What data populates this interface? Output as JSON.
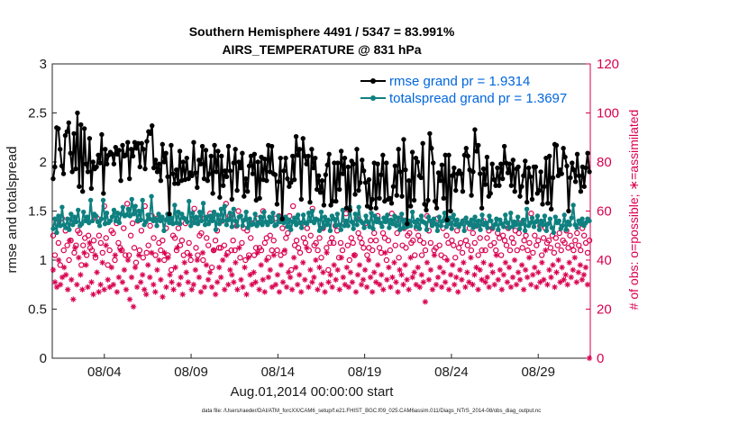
{
  "chart_data": {
    "type": "line",
    "title": "Southern Hemisphere 4491 / 5347 = 83.991%",
    "subtitle": "AIRS_TEMPERATURE @ 831 hPa",
    "xlabel": "Aug.01,2014 00:00:00 start",
    "ylabel": "rmse and totalspread",
    "y2label": "# of obs: o=possible; ∗=assimilated",
    "footer": "data file: /Users/raeder/DAI/ATM_forcXX/CAM6_setup/f.e21.FHIST_BGC.f09_025.CAM6assim.011/Diags_NTrS_2014-08/obs_diag_output.nc",
    "x_ticks": [
      "08/04",
      "08/09",
      "08/14",
      "08/19",
      "08/24",
      "08/29"
    ],
    "x_tick_days": [
      4,
      9,
      14,
      19,
      24,
      29
    ],
    "xlim": [
      1,
      32
    ],
    "ylim": [
      0,
      3
    ],
    "y_ticks": [
      "0",
      "0.5",
      "1",
      "1.5",
      "2",
      "2.5",
      "3"
    ],
    "y2lim": [
      0,
      120
    ],
    "y2_ticks": [
      "0",
      "20",
      "40",
      "60",
      "80",
      "100",
      "120"
    ],
    "grid": false,
    "legend_position": "top-right",
    "colors": {
      "rmse": "#000000",
      "totalspread": "#0f8080",
      "obs": "#d9004f",
      "legend_text": "#0066dd"
    },
    "series": [
      {
        "name": "rmse grand pr = 1.9314",
        "axis": "left",
        "values": [
          1.83,
          1.95,
          2.35,
          2.34,
          2.13,
          1.96,
          1.88,
          2.27,
          2.31,
          2.4,
          2.09,
          1.9,
          2.29,
          1.93,
          2.5,
          1.75,
          2.38,
          1.7,
          2.34,
          1.98,
          1.9,
          2.24,
          1.73,
          2.0,
          1.93,
          1.95,
          2.07,
          1.99,
          2.28,
          1.68,
          2.13,
          1.98,
          2.07,
          2.1,
          2.08,
          1.98,
          2.15,
          2.08,
          2.12,
          1.81,
          2.17,
          2.06,
          2.07,
          2.2,
          1.83,
          2.13,
          2.06,
          2.2,
          2.14,
          2.19,
          1.95,
          2.19,
          2.13,
          1.93,
          2.21,
          2.31,
          2.29,
          2.37,
          1.94,
          2.02,
          1.9,
          1.98,
          1.81,
          2.18,
          2.0,
          2.09,
          1.85,
          1.47,
          2.17,
          1.88,
          1.78,
          1.92,
          1.78,
          2.11,
          1.81,
          2.0,
          1.82,
          2.04,
          1.83,
          1.89,
          1.86,
          2.2,
          1.89,
          1.74,
          2.02,
          1.98,
          2.16,
          1.83,
          2.12,
          1.81,
          1.88,
          2.06,
          1.68,
          2.17,
          1.9,
          2.11,
          1.64,
          2.06,
          1.76,
          1.91,
          1.85,
          2.16,
          1.91,
          1.62,
          1.99,
          2.13,
          1.71,
          2.0,
          1.94,
          2.09,
          1.65,
          1.83,
          1.7,
          1.96,
          2.06,
          1.88,
          2.08,
          1.61,
          2.0,
          1.63,
          2.05,
          1.82,
          2.03,
          1.81,
          2.17,
          1.9,
          2.16,
          1.88,
          1.87,
          1.57,
          1.8,
          2.04,
          1.42,
          1.91,
          2.04,
          1.83,
          1.75,
          1.79,
          2.06,
          1.82,
          2.26,
          2.07,
          2.13,
          1.62,
          2.24,
          2.06,
          1.98,
          2.06,
          1.59,
          2.13,
          1.94,
          2.04,
          1.72,
          1.86,
          1.69,
          1.81,
          1.56,
          1.87,
          1.97,
          2.08,
          1.56,
          1.6,
          1.99,
          1.6,
          1.99,
          1.72,
          2.11,
          1.88,
          2.04,
          1.53,
          1.95,
          1.51,
          2.01,
          1.98,
          1.67,
          2.13,
          1.71,
          1.79,
          2.02,
          1.91,
          1.79,
          1.55,
          1.82,
          1.53,
          1.62,
          1.99,
          1.53,
          1.98,
          1.63,
          1.87,
          2.07,
          1.6,
          1.99,
          1.62,
          1.63,
          1.58,
          1.75,
          1.96,
          1.66,
          2.13,
          1.9,
          1.65,
          2.23,
          1.92,
          1.37,
          1.81,
          1.55,
          2.1,
          1.61,
          2.04,
          2.0,
          1.86,
          1.84,
          2.19,
          1.57,
          1.51,
          1.61,
          2.29,
          2.14,
          1.99,
          1.6,
          1.53,
          1.89,
          1.81,
          1.97,
          1.63,
          2.07,
          1.41,
          2.07,
          1.5,
          1.86,
          1.94,
          1.71,
          1.88,
          1.91,
          1.88,
          1.7,
          2.07,
          2.14,
          2.06,
          1.92,
          1.66,
          1.9,
          2.33,
          2.11,
          2.17,
          1.88,
          1.53,
          1.93,
          1.77,
          2.05,
          1.65,
          1.68,
          1.98,
          1.82,
          1.76,
          1.94,
          1.76,
          1.98,
          1.83,
          2.16,
          1.99,
          1.89,
          1.98,
          1.76,
          2.02,
          1.7,
          1.93,
          1.95,
          1.65,
          1.75,
          1.86,
          2.01,
          1.59,
          1.94,
          1.85,
          1.62,
          1.95,
          1.95,
          1.68,
          1.71,
          1.9,
          1.57,
          1.75,
          2.04,
          1.58,
          2.06,
          1.52,
          1.84,
          2.18,
          2.17,
          1.86,
          1.92,
          1.88,
          2.14,
          2.05,
          1.96,
          1.5,
          1.84,
          1.99,
          1.92,
          1.8,
          2.08,
          1.86,
          1.7,
          1.95,
          1.75,
          1.94,
          2.09,
          1.9
        ]
      },
      {
        "name": "totalspread grand pr = 1.3697",
        "axis": "left",
        "values": [
          1.32,
          1.42,
          1.28,
          1.45,
          1.35,
          1.54,
          1.36,
          1.33,
          1.42,
          1.31,
          1.47,
          1.36,
          1.44,
          1.39,
          1.51,
          1.35,
          1.37,
          1.49,
          1.4,
          1.44,
          1.38,
          1.61,
          1.4,
          1.47,
          1.45,
          1.39,
          1.35,
          1.42,
          1.61,
          1.37,
          1.48,
          1.38,
          1.4,
          1.44,
          1.51,
          1.4,
          1.48,
          1.38,
          1.47,
          1.54,
          1.45,
          1.46,
          1.52,
          1.45,
          1.62,
          1.47,
          1.55,
          1.4,
          1.5,
          1.41,
          1.61,
          1.36,
          1.39,
          1.46,
          1.42,
          1.65,
          1.4,
          1.42,
          1.35,
          1.47,
          1.4,
          1.44,
          1.3,
          1.41,
          1.47,
          1.38,
          1.43,
          1.37,
          1.56,
          1.38,
          1.49,
          1.37,
          1.47,
          1.43,
          1.42,
          1.39,
          1.6,
          1.35,
          1.48,
          1.38,
          1.44,
          1.37,
          1.49,
          1.4,
          1.58,
          1.36,
          1.44,
          1.37,
          1.45,
          1.4,
          1.49,
          1.31,
          1.46,
          1.37,
          1.52,
          1.4,
          1.55,
          1.36,
          1.41,
          1.48,
          1.34,
          1.52,
          1.4,
          1.35,
          1.44,
          1.45,
          1.35,
          1.41,
          1.49,
          1.33,
          1.42,
          1.36,
          1.37,
          1.47,
          1.35,
          1.38,
          1.44,
          1.36,
          1.49,
          1.39,
          1.36,
          1.44,
          1.39,
          1.48,
          1.35,
          1.36,
          1.45,
          1.39,
          1.4,
          1.38,
          1.44,
          1.34,
          1.41,
          1.31,
          1.39,
          1.43,
          1.36,
          1.46,
          1.38,
          1.33,
          1.46,
          1.38,
          1.37,
          1.48,
          1.4,
          1.5,
          1.38,
          1.42,
          1.41,
          1.3,
          1.49,
          1.33,
          1.44,
          1.36,
          1.41,
          1.3,
          1.45,
          1.42,
          1.35,
          1.47,
          1.36,
          1.31,
          1.51,
          1.35,
          1.4,
          1.35,
          1.54,
          1.39,
          1.32,
          1.47,
          1.36,
          1.54,
          1.4,
          1.38,
          1.33,
          1.45,
          1.39,
          1.34,
          1.48,
          1.32,
          1.45,
          1.39,
          1.42,
          1.38,
          1.34,
          1.43,
          1.39,
          1.46,
          1.33,
          1.41,
          1.37,
          1.45,
          1.35,
          1.43,
          1.31,
          1.47,
          1.33,
          1.41,
          1.34,
          1.4,
          1.35,
          1.49,
          1.39,
          1.34,
          1.41,
          1.32,
          1.45,
          1.39,
          1.38,
          1.31,
          1.44,
          1.4,
          1.35,
          1.42,
          1.37,
          1.3,
          1.44,
          1.35,
          1.4,
          1.48,
          1.34,
          1.37,
          1.43,
          1.32,
          1.46,
          1.36,
          1.41,
          1.34,
          1.37,
          1.4,
          1.3,
          1.43,
          1.38,
          1.36,
          1.41,
          1.33,
          1.44,
          1.35,
          1.4,
          1.31,
          1.46,
          1.36,
          1.38,
          1.33,
          1.45,
          1.4,
          1.33,
          1.36,
          1.42,
          1.31,
          1.41,
          1.37,
          1.34,
          1.46,
          1.38,
          1.33,
          1.48,
          1.34,
          1.39,
          1.36,
          1.44,
          1.32,
          1.37,
          1.41,
          1.3,
          1.52,
          1.35,
          1.38,
          1.43,
          1.34,
          1.39,
          1.45,
          1.31,
          1.4,
          1.36,
          1.45,
          1.3,
          1.37,
          1.42,
          1.33,
          1.28,
          1.44,
          1.38,
          1.4,
          1.32,
          1.35,
          1.46,
          1.31,
          1.39,
          1.36,
          1.43,
          1.56,
          1.36,
          1.33,
          1.4,
          1.37,
          1.42,
          1.35,
          1.38,
          1.42,
          1.4
        ]
      },
      {
        "name": "obs possible",
        "axis": "right",
        "marker": "circle",
        "values": [
          50,
          42,
          55,
          47,
          38,
          57,
          44,
          52,
          46,
          40,
          48,
          55,
          43,
          46,
          52,
          51,
          38,
          46,
          49,
          42,
          50,
          45,
          44,
          48,
          41,
          57,
          50,
          47,
          43,
          62,
          49,
          38,
          44,
          52,
          51,
          40,
          55,
          47,
          45,
          44,
          53,
          42,
          63,
          42,
          50,
          55,
          45,
          39,
          56,
          44,
          52,
          41,
          62,
          43,
          46,
          54,
          58,
          49,
          42,
          57,
          47,
          44,
          48,
          40,
          53,
          42,
          56,
          36,
          50,
          49,
          44,
          53,
          46,
          48,
          42,
          55,
          43,
          47,
          40,
          57,
          61,
          45,
          42,
          50,
          51,
          40,
          57,
          49,
          46,
          59,
          37,
          44,
          48,
          52,
          45,
          45,
          56,
          46,
          63,
          43,
          58,
          44,
          48,
          44,
          54,
          60,
          41,
          47,
          53,
          40,
          52,
          42,
          49,
          55,
          42,
          45,
          57,
          45,
          44,
          60,
          47,
          49,
          41,
          50,
          44,
          48,
          57,
          44,
          58,
          42,
          53,
          43,
          49,
          51,
          58,
          36,
          62,
          46,
          48,
          45,
          43,
          55,
          49,
          47,
          53,
          44,
          50,
          61,
          46,
          47,
          44,
          49,
          41,
          53,
          55,
          45,
          36,
          47,
          49,
          47,
          54,
          52,
          41,
          47,
          44,
          55,
          59,
          46,
          40,
          49,
          47,
          42,
          57,
          51,
          49,
          47,
          45,
          55,
          42,
          45,
          48,
          44,
          51,
          48,
          58,
          45,
          43,
          51,
          49,
          40,
          48,
          44,
          59,
          55,
          46,
          51,
          41,
          57,
          46,
          53,
          45,
          50,
          51,
          47,
          48,
          42,
          53,
          50,
          48,
          42,
          47,
          44,
          58,
          52,
          47,
          55,
          44,
          45,
          57,
          46,
          42,
          53,
          41,
          50,
          47,
          55,
          48,
          46,
          41,
          52,
          45,
          47,
          43,
          56,
          48,
          46,
          53,
          44,
          51,
          47,
          54,
          42,
          49,
          44,
          56,
          44,
          49,
          52,
          46,
          53,
          47,
          44,
          51,
          49,
          42,
          50,
          48,
          46,
          53,
          44,
          49,
          47,
          52,
          44,
          51,
          55,
          45,
          48,
          50,
          44,
          47,
          59,
          43,
          50,
          46,
          48,
          54,
          42,
          49,
          53,
          47,
          48,
          45,
          50,
          43,
          49,
          46,
          51,
          44,
          48,
          47,
          52,
          45,
          50,
          46,
          44,
          48,
          51,
          46,
          44,
          53,
          50,
          47,
          43,
          48
        ]
      },
      {
        "name": "obs assimilated",
        "axis": "right",
        "marker": "asterisk",
        "values": [
          36,
          31,
          29,
          40,
          30,
          33,
          37,
          34,
          28,
          48,
          32,
          24,
          45,
          30,
          41,
          34,
          28,
          43,
          38,
          29,
          47,
          31,
          26,
          42,
          35,
          27,
          30,
          39,
          28,
          46,
          32,
          29,
          37,
          30,
          42,
          27,
          33,
          44,
          31,
          36,
          28,
          40,
          24,
          33,
          21,
          37,
          29,
          42,
          31,
          34,
          28,
          26,
          38,
          33,
          43,
          30,
          27,
          36,
          40,
          32,
          25,
          43,
          29,
          41,
          34,
          31,
          28,
          37,
          45,
          30,
          33,
          26,
          39,
          35,
          31,
          42,
          28,
          30,
          36,
          40,
          33,
          27,
          43,
          29,
          38,
          32,
          35,
          29,
          44,
          26,
          31,
          37,
          33,
          40,
          28,
          42,
          30,
          36,
          34,
          31,
          39,
          28,
          45,
          32,
          29,
          37,
          26,
          41,
          34,
          30,
          35,
          31,
          43,
          28,
          38,
          32,
          27,
          40,
          33,
          36,
          29,
          42,
          30,
          34,
          27,
          38,
          31,
          44,
          29,
          35,
          33,
          28,
          41,
          37,
          30,
          34,
          27,
          39,
          32,
          45,
          29,
          36,
          31,
          33,
          40,
          28,
          37,
          30,
          35,
          27,
          43,
          31,
          34,
          29,
          38,
          32,
          36,
          28,
          41,
          33,
          30,
          37,
          29,
          35,
          31,
          42,
          27,
          34,
          38,
          30,
          32,
          36,
          29,
          40,
          33,
          27,
          35,
          31,
          38,
          30,
          34,
          28,
          43,
          32,
          37,
          29,
          33,
          39,
          31,
          27,
          36,
          34,
          30,
          38,
          32,
          28,
          41,
          33,
          35,
          30,
          37,
          29,
          34,
          31,
          23,
          39,
          32,
          36,
          28,
          42,
          30,
          33,
          37,
          29,
          35,
          31,
          40,
          28,
          34,
          38,
          30,
          33,
          27,
          36,
          32,
          39,
          29,
          35,
          31,
          41,
          30,
          34,
          37,
          28,
          36,
          32,
          39,
          31,
          33,
          29,
          38,
          35,
          30,
          42,
          32,
          36,
          28,
          34,
          39,
          31,
          37,
          29,
          33,
          40,
          30,
          35,
          32,
          38,
          28,
          36,
          33,
          41,
          30,
          34,
          37,
          29,
          35,
          31,
          39,
          32,
          44,
          30,
          36,
          33,
          38,
          29,
          35,
          40,
          31,
          37,
          32,
          34,
          30,
          39,
          33,
          36,
          41,
          31,
          35,
          38,
          32,
          34,
          37,
          30,
          0
        ]
      }
    ]
  }
}
